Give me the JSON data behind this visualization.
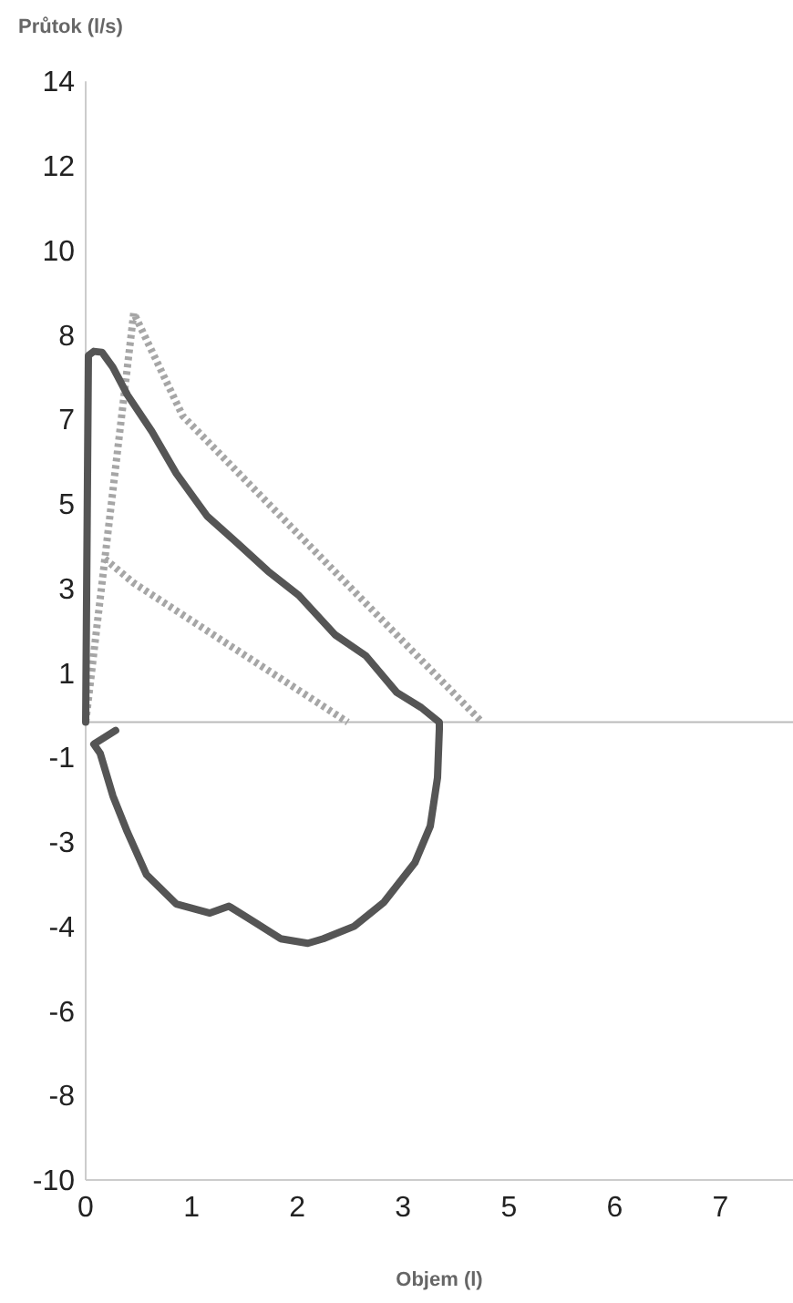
{
  "chart_data": {
    "type": "line",
    "xlabel": "Objem (l)",
    "ylabel": "Průtok (l/s)",
    "xlim": [
      0,
      7.8
    ],
    "ylim": [
      -10,
      14
    ],
    "xticks": [
      {
        "value": 0,
        "label": "0"
      },
      {
        "value": 1.167,
        "label": "1"
      },
      {
        "value": 2.333,
        "label": "2"
      },
      {
        "value": 3.5,
        "label": "3"
      },
      {
        "value": 4.667,
        "label": "5"
      },
      {
        "value": 5.833,
        "label": "6"
      },
      {
        "value": 7,
        "label": "7"
      }
    ],
    "yticks": [
      {
        "value": 14,
        "label": "14"
      },
      {
        "value": 12.15,
        "label": "12"
      },
      {
        "value": 10.31,
        "label": "10"
      },
      {
        "value": 8.46,
        "label": "8"
      },
      {
        "value": 6.62,
        "label": "7"
      },
      {
        "value": 4.77,
        "label": "5"
      },
      {
        "value": 2.92,
        "label": "3"
      },
      {
        "value": 1.08,
        "label": "1"
      },
      {
        "value": -0.77,
        "label": "-1"
      },
      {
        "value": -2.62,
        "label": "-3"
      },
      {
        "value": -4.46,
        "label": "-4"
      },
      {
        "value": -6.31,
        "label": "-6"
      },
      {
        "value": -8.15,
        "label": "-8"
      },
      {
        "value": -10,
        "label": "-10"
      }
    ],
    "grid": false,
    "marker": "none",
    "ref_lines": [
      {
        "axis": "y",
        "value": 0,
        "color": "#bbbbbb"
      }
    ],
    "series": [
      {
        "color": "#a6a6a6",
        "line_style": "dotted",
        "x": [
          0,
          0.53,
          1.07,
          4.37
        ],
        "values": [
          0,
          8.94,
          6.69,
          0
        ]
      },
      {
        "color": "#a6a6a6",
        "line_style": "dotted",
        "x": [
          0.21,
          0.53,
          2.89
        ],
        "values": [
          3.57,
          3.04,
          0
        ]
      },
      {
        "color": "#555555",
        "line_style": "solid",
        "x": [
          0,
          0.03,
          0.09,
          0.18,
          0.3,
          0.46,
          0.73,
          1.0,
          1.34,
          1.68,
          2.01,
          2.35,
          2.75,
          3.09,
          3.43,
          3.7,
          3.9,
          3.9,
          3.88,
          3.8,
          3.63,
          3.29,
          2.96,
          2.62,
          2.45,
          2.15,
          1.88,
          1.58,
          1.37,
          1.0,
          0.67,
          0.46,
          0.3,
          0.16,
          0.09,
          0.33
        ],
        "values": [
          0,
          8.01,
          8.1,
          8.08,
          7.75,
          7.15,
          6.35,
          5.43,
          4.5,
          3.9,
          3.3,
          2.77,
          1.91,
          1.45,
          0.65,
          0.32,
          0,
          -0.15,
          -1.21,
          -2.27,
          -3.07,
          -3.93,
          -4.46,
          -4.73,
          -4.83,
          -4.73,
          -4.39,
          -4.02,
          -4.17,
          -3.97,
          -3.33,
          -2.4,
          -1.61,
          -0.68,
          -0.48,
          -0.18
        ]
      }
    ]
  }
}
